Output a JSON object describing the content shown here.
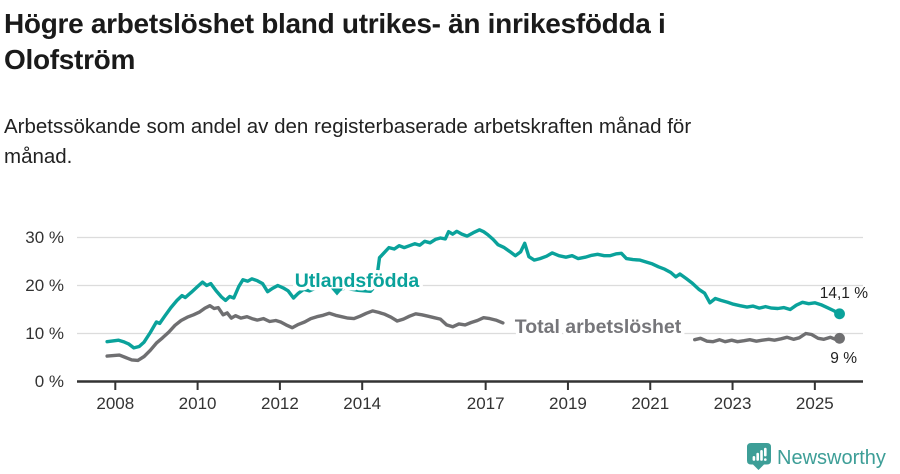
{
  "header": {
    "title_line1": "Högre arbetslöshet bland utrikes- än inrikesfödda i",
    "title_line2": "Olofström",
    "subtitle_line1": "Arbetssökande som andel av den registerbaserade arbetskraften månad för",
    "subtitle_line2": "månad."
  },
  "footer": {
    "brand": "Newsworthy"
  },
  "colors": {
    "teal_line": "#0aa29b",
    "gray_line": "#6f6f71",
    "gray_label": "#76767a",
    "logo_teal": "#3d9e97",
    "axis": "#333333",
    "grid": "#dcdcdc",
    "end_label_text": "#212121"
  },
  "chart_data": {
    "type": "line",
    "title": "Högre arbetslöshet bland utrikes- än inrikesfödda i Olofström",
    "subtitle": "Arbetssökande som andel av den registerbaserade arbetskraften månad för månad.",
    "unit": "%",
    "grid": true,
    "x_axis": {
      "ticks": [
        2008,
        2010,
        2012,
        2014,
        2017,
        2019,
        2021,
        2023,
        2025
      ],
      "tick_labels": [
        "2008",
        "2010",
        "2012",
        "2014",
        "2017",
        "2019",
        "2021",
        "2023",
        "2025"
      ],
      "range": [
        2007.3,
        2026.2
      ]
    },
    "y_axis": {
      "ticks": [
        0,
        10,
        20,
        30
      ],
      "tick_labels": [
        "0 %",
        "10 %",
        "20 %",
        "30 %"
      ],
      "range": [
        0,
        33
      ]
    },
    "series": [
      {
        "name": "Utlandsfödda",
        "color": "#0aa29b",
        "label_color": "#0aa29b",
        "end_label": "14,1 %",
        "end_value": 14.1,
        "segments": [
          [
            [
              2007.8,
              8.3
            ],
            [
              2008.08,
              8.6
            ],
            [
              2008.2,
              8.3
            ],
            [
              2008.33,
              7.8
            ],
            [
              2008.45,
              7.0
            ],
            [
              2008.58,
              7.3
            ],
            [
              2008.7,
              8.2
            ],
            [
              2008.85,
              10.2
            ],
            [
              2009.0,
              12.4
            ],
            [
              2009.08,
              12.1
            ],
            [
              2009.2,
              13.6
            ],
            [
              2009.35,
              15.4
            ],
            [
              2009.5,
              16.9
            ],
            [
              2009.62,
              17.9
            ],
            [
              2009.7,
              17.5
            ],
            [
              2009.85,
              18.6
            ],
            [
              2010.0,
              19.8
            ],
            [
              2010.12,
              20.7
            ],
            [
              2010.22,
              20.0
            ],
            [
              2010.32,
              20.4
            ],
            [
              2010.45,
              18.9
            ],
            [
              2010.58,
              17.6
            ],
            [
              2010.68,
              16.9
            ],
            [
              2010.78,
              17.7
            ],
            [
              2010.88,
              17.4
            ],
            [
              2011.0,
              19.8
            ],
            [
              2011.1,
              21.2
            ],
            [
              2011.22,
              20.9
            ],
            [
              2011.32,
              21.4
            ],
            [
              2011.45,
              21.0
            ],
            [
              2011.58,
              20.4
            ],
            [
              2011.7,
              18.7
            ],
            [
              2011.82,
              19.4
            ],
            [
              2011.95,
              20.0
            ],
            [
              2012.08,
              19.5
            ],
            [
              2012.2,
              18.9
            ],
            [
              2012.33,
              17.4
            ],
            [
              2012.45,
              18.4
            ],
            [
              2012.58,
              19.2
            ],
            [
              2012.72,
              18.9
            ],
            [
              2012.85,
              19.4
            ],
            [
              2013.0,
              19.9
            ],
            [
              2013.15,
              19.6
            ],
            [
              2013.3,
              19.3
            ],
            [
              2013.45,
              19.1
            ],
            [
              2013.6,
              19.5
            ],
            [
              2013.75,
              19.2
            ],
            [
              2013.9,
              19.0
            ],
            [
              2014.05,
              18.9
            ],
            [
              2014.2,
              18.8
            ],
            [
              2014.33,
              20.0
            ],
            [
              2014.42,
              25.8
            ],
            [
              2014.52,
              26.7
            ],
            [
              2014.65,
              27.9
            ],
            [
              2014.78,
              27.6
            ],
            [
              2014.9,
              28.3
            ],
            [
              2015.02,
              27.9
            ],
            [
              2015.15,
              28.3
            ],
            [
              2015.28,
              28.7
            ],
            [
              2015.4,
              28.4
            ],
            [
              2015.52,
              29.2
            ],
            [
              2015.65,
              28.9
            ],
            [
              2015.78,
              29.6
            ],
            [
              2015.9,
              29.9
            ],
            [
              2016.02,
              29.7
            ],
            [
              2016.1,
              31.2
            ],
            [
              2016.2,
              30.7
            ],
            [
              2016.3,
              31.3
            ],
            [
              2016.42,
              30.7
            ],
            [
              2016.55,
              30.3
            ],
            [
              2016.7,
              31.0
            ],
            [
              2016.85,
              31.6
            ],
            [
              2016.95,
              31.2
            ],
            [
              2017.05,
              30.6
            ],
            [
              2017.18,
              29.6
            ],
            [
              2017.3,
              28.5
            ],
            [
              2017.45,
              27.9
            ],
            [
              2017.6,
              27.0
            ],
            [
              2017.72,
              26.2
            ],
            [
              2017.85,
              27.0
            ],
            [
              2017.95,
              28.8
            ],
            [
              2018.05,
              26.0
            ],
            [
              2018.18,
              25.3
            ],
            [
              2018.32,
              25.6
            ],
            [
              2018.48,
              26.1
            ],
            [
              2018.62,
              26.8
            ],
            [
              2018.78,
              26.2
            ],
            [
              2018.95,
              25.9
            ],
            [
              2019.1,
              26.2
            ],
            [
              2019.25,
              25.6
            ],
            [
              2019.42,
              25.9
            ],
            [
              2019.58,
              26.3
            ],
            [
              2019.72,
              26.5
            ],
            [
              2019.88,
              26.2
            ],
            [
              2020.02,
              26.2
            ],
            [
              2020.18,
              26.6
            ],
            [
              2020.3,
              26.7
            ],
            [
              2020.42,
              25.6
            ],
            [
              2020.58,
              25.4
            ],
            [
              2020.75,
              25.3
            ],
            [
              2020.9,
              24.9
            ],
            [
              2021.05,
              24.5
            ],
            [
              2021.2,
              23.9
            ],
            [
              2021.35,
              23.4
            ],
            [
              2021.5,
              22.7
            ],
            [
              2021.62,
              21.8
            ],
            [
              2021.72,
              22.4
            ],
            [
              2021.88,
              21.4
            ],
            [
              2022.02,
              20.5
            ],
            [
              2022.18,
              19.2
            ],
            [
              2022.32,
              18.4
            ],
            [
              2022.45,
              16.4
            ],
            [
              2022.58,
              17.3
            ],
            [
              2022.72,
              16.9
            ],
            [
              2022.88,
              16.5
            ],
            [
              2023.02,
              16.1
            ],
            [
              2023.18,
              15.8
            ],
            [
              2023.35,
              15.5
            ],
            [
              2023.5,
              15.7
            ],
            [
              2023.65,
              15.3
            ],
            [
              2023.8,
              15.6
            ],
            [
              2023.95,
              15.3
            ],
            [
              2024.1,
              15.2
            ],
            [
              2024.25,
              15.4
            ],
            [
              2024.4,
              15.0
            ],
            [
              2024.55,
              15.9
            ],
            [
              2024.7,
              16.5
            ],
            [
              2024.85,
              16.2
            ],
            [
              2025.0,
              16.4
            ],
            [
              2025.15,
              16.0
            ],
            [
              2025.3,
              15.4
            ],
            [
              2025.45,
              14.8
            ],
            [
              2025.6,
              14.1
            ]
          ]
        ]
      },
      {
        "name": "Total arbetslöshet",
        "color": "#6f6f71",
        "label_color": "#76767a",
        "end_label": "9 %",
        "end_value": 9.0,
        "segments": [
          [
            [
              2007.8,
              5.3
            ],
            [
              2008.1,
              5.5
            ],
            [
              2008.25,
              5.0
            ],
            [
              2008.4,
              4.5
            ],
            [
              2008.55,
              4.4
            ],
            [
              2008.7,
              5.2
            ],
            [
              2008.85,
              6.5
            ],
            [
              2009.0,
              8.0
            ],
            [
              2009.15,
              9.1
            ],
            [
              2009.3,
              10.3
            ],
            [
              2009.45,
              11.7
            ],
            [
              2009.6,
              12.7
            ],
            [
              2009.75,
              13.4
            ],
            [
              2009.9,
              13.9
            ],
            [
              2010.05,
              14.5
            ],
            [
              2010.18,
              15.3
            ],
            [
              2010.3,
              15.8
            ],
            [
              2010.4,
              15.2
            ],
            [
              2010.5,
              15.4
            ],
            [
              2010.62,
              13.9
            ],
            [
              2010.72,
              14.3
            ],
            [
              2010.82,
              13.2
            ],
            [
              2010.92,
              13.7
            ],
            [
              2011.05,
              13.2
            ],
            [
              2011.2,
              13.5
            ],
            [
              2011.32,
              13.1
            ],
            [
              2011.45,
              12.8
            ],
            [
              2011.6,
              13.1
            ],
            [
              2011.75,
              12.5
            ],
            [
              2011.9,
              12.7
            ],
            [
              2012.02,
              12.4
            ],
            [
              2012.15,
              11.8
            ],
            [
              2012.3,
              11.2
            ],
            [
              2012.45,
              11.9
            ],
            [
              2012.6,
              12.4
            ],
            [
              2012.75,
              13.1
            ],
            [
              2012.9,
              13.5
            ],
            [
              2013.05,
              13.8
            ],
            [
              2013.2,
              14.2
            ],
            [
              2013.35,
              13.8
            ],
            [
              2013.5,
              13.5
            ],
            [
              2013.65,
              13.2
            ],
            [
              2013.8,
              13.1
            ],
            [
              2013.95,
              13.6
            ],
            [
              2014.1,
              14.2
            ],
            [
              2014.25,
              14.7
            ],
            [
              2014.4,
              14.4
            ],
            [
              2014.55,
              14.0
            ],
            [
              2014.7,
              13.4
            ],
            [
              2014.85,
              12.6
            ],
            [
              2015.0,
              13.0
            ],
            [
              2015.15,
              13.6
            ],
            [
              2015.3,
              14.1
            ],
            [
              2015.45,
              13.9
            ],
            [
              2015.6,
              13.6
            ],
            [
              2015.75,
              13.3
            ],
            [
              2015.9,
              13.0
            ],
            [
              2016.05,
              11.8
            ],
            [
              2016.2,
              11.4
            ],
            [
              2016.35,
              12.0
            ],
            [
              2016.5,
              11.8
            ],
            [
              2016.65,
              12.3
            ],
            [
              2016.8,
              12.7
            ],
            [
              2016.95,
              13.3
            ],
            [
              2017.1,
              13.1
            ],
            [
              2017.25,
              12.8
            ],
            [
              2017.42,
              12.2
            ]
          ],
          [
            [
              2022.08,
              8.7
            ],
            [
              2022.22,
              9.0
            ],
            [
              2022.38,
              8.4
            ],
            [
              2022.52,
              8.3
            ],
            [
              2022.68,
              8.7
            ],
            [
              2022.82,
              8.3
            ],
            [
              2022.98,
              8.6
            ],
            [
              2023.12,
              8.3
            ],
            [
              2023.28,
              8.5
            ],
            [
              2023.42,
              8.7
            ],
            [
              2023.58,
              8.4
            ],
            [
              2023.72,
              8.6
            ],
            [
              2023.88,
              8.8
            ],
            [
              2024.02,
              8.6
            ],
            [
              2024.18,
              8.9
            ],
            [
              2024.32,
              9.2
            ],
            [
              2024.48,
              8.8
            ],
            [
              2024.62,
              9.1
            ],
            [
              2024.78,
              10.0
            ],
            [
              2024.92,
              9.8
            ],
            [
              2025.08,
              9.0
            ],
            [
              2025.22,
              8.8
            ],
            [
              2025.38,
              9.2
            ],
            [
              2025.5,
              8.8
            ],
            [
              2025.6,
              9.0
            ]
          ]
        ]
      }
    ]
  }
}
